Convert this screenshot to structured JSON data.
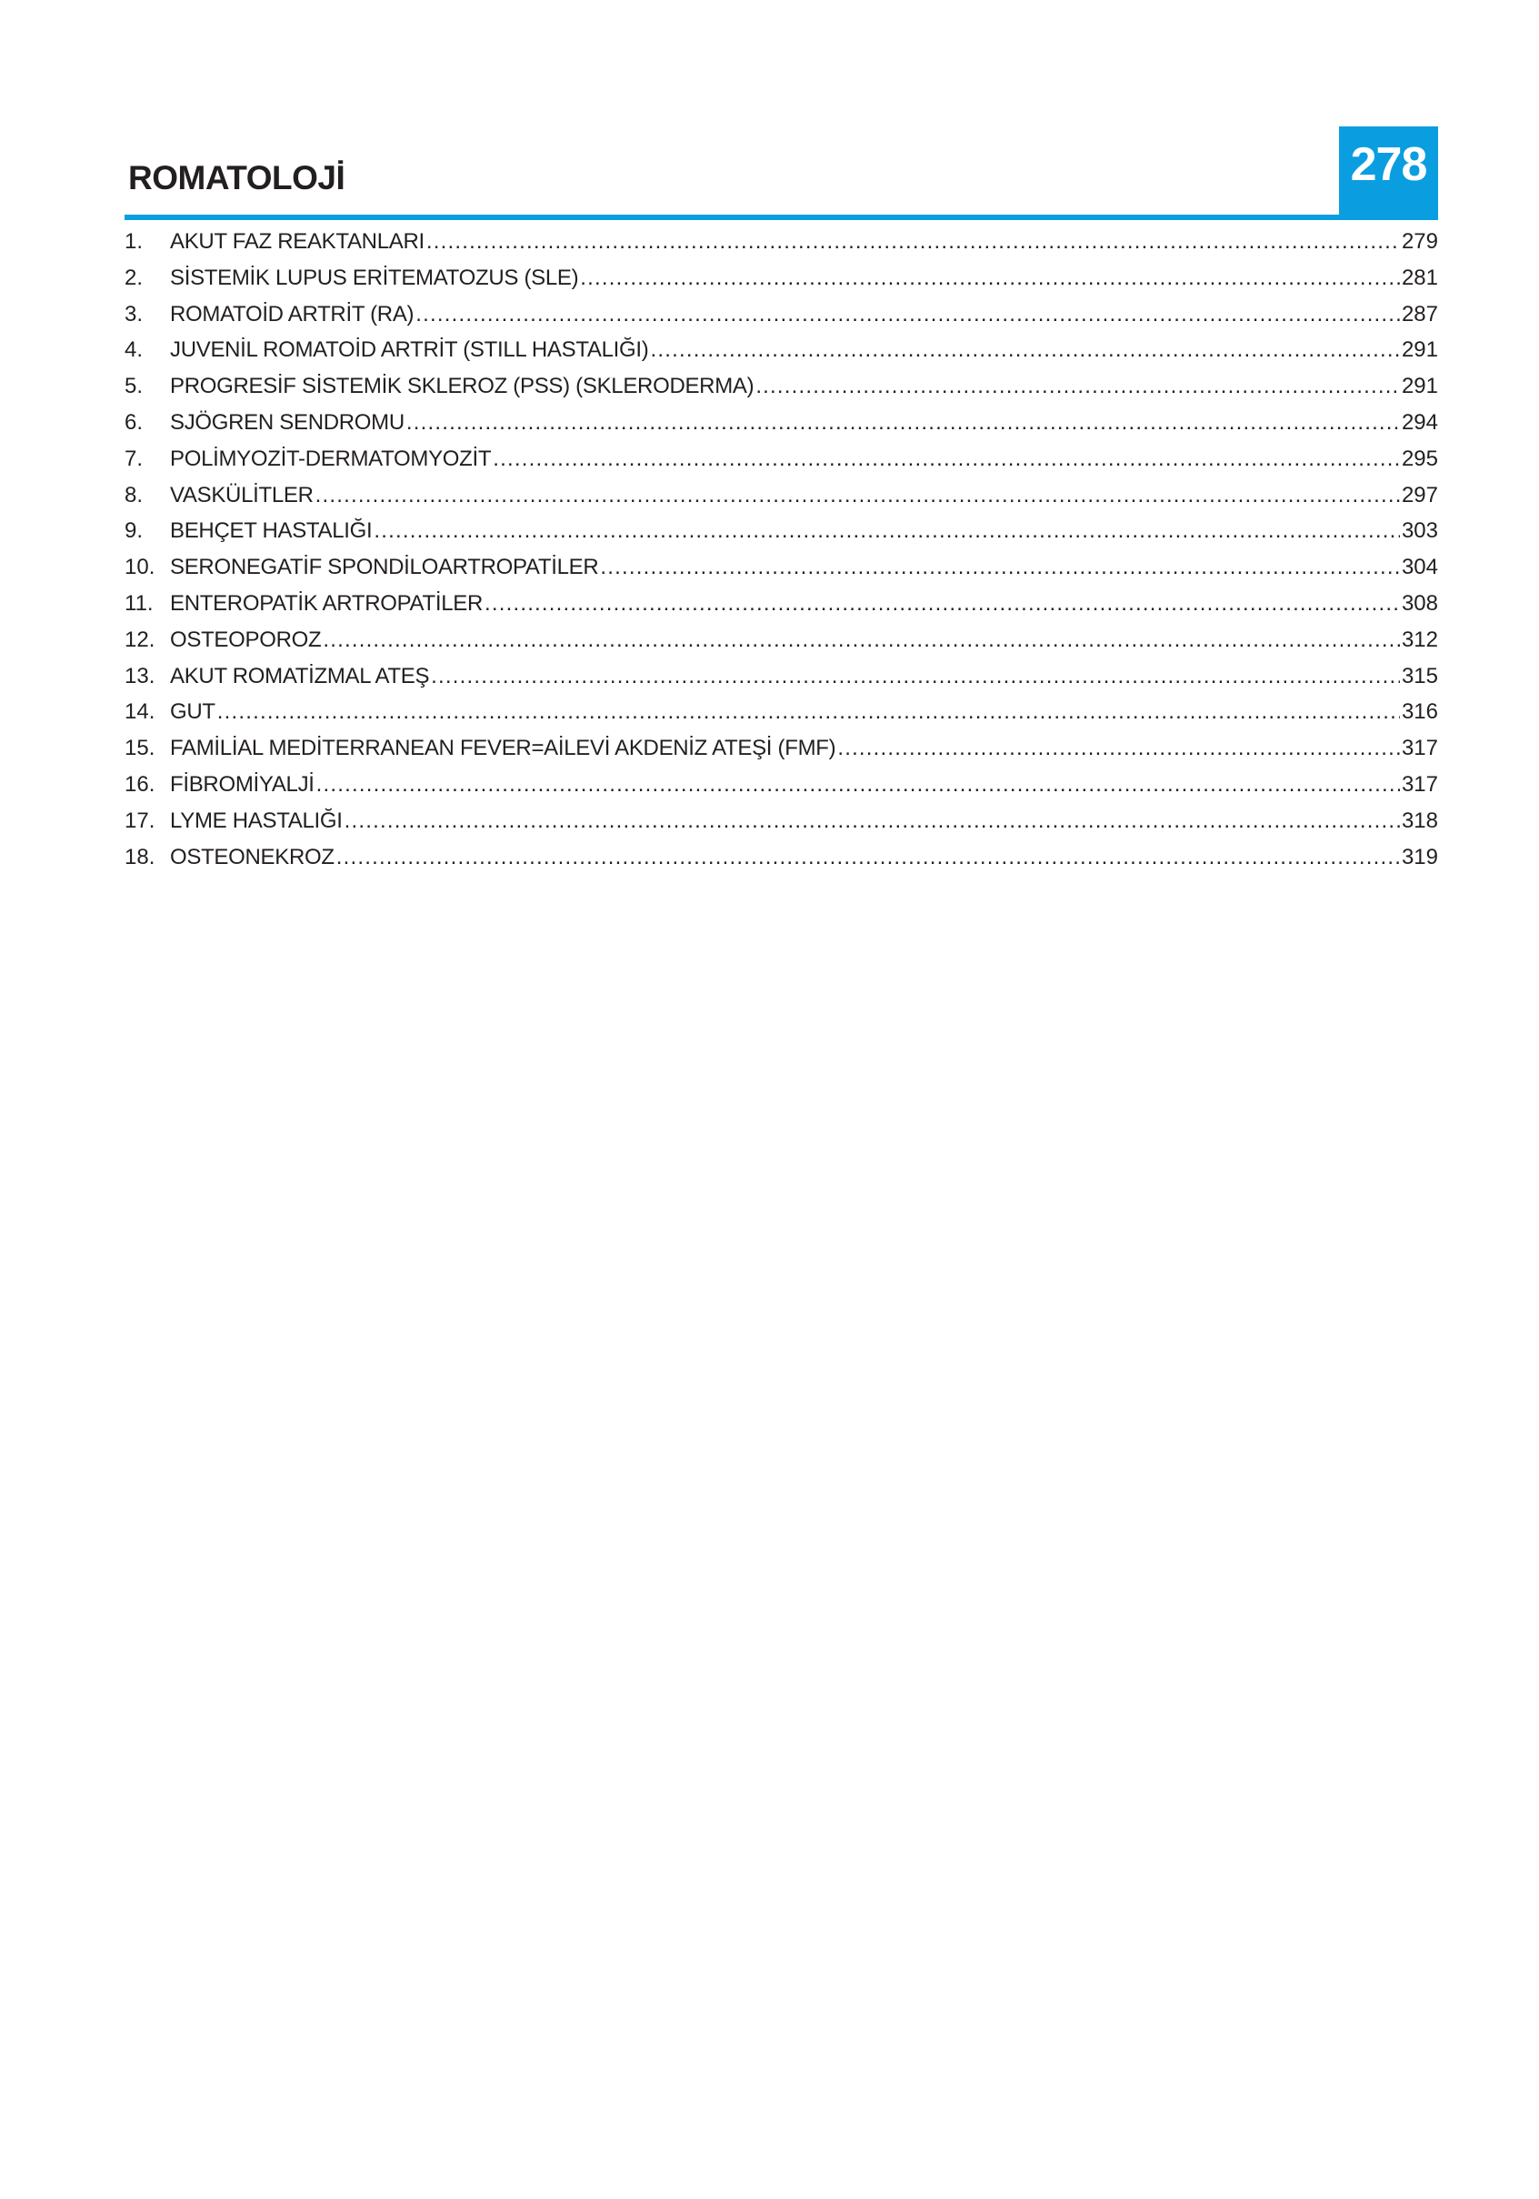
{
  "header": {
    "title": "ROMATOLOJİ",
    "page_number": "278",
    "accent_color": "#0a9ee0"
  },
  "toc": [
    {
      "number": "1.",
      "title": "AKUT FAZ REAKTANLARI",
      "page": "279"
    },
    {
      "number": "2.",
      "title": "SİSTEMİK LUPUS ERİTEMATOZUS (SLE)",
      "page": "281"
    },
    {
      "number": "3.",
      "title": "ROMATOİD ARTRİT (RA)",
      "page": "287"
    },
    {
      "number": "4.",
      "title": "JUVENİL ROMATOİD ARTRİT (STILL HASTALIĞI)",
      "page": "291"
    },
    {
      "number": "5.",
      "title": "PROGRESİF SİSTEMİK SKLEROZ (PSS) (SKLERODERMA)",
      "page": "291"
    },
    {
      "number": "6.",
      "title": "SJÖGREN SENDROMU",
      "page": "294"
    },
    {
      "number": "7.",
      "title": "POLİMYOZİT-DERMATOMYOZİT",
      "page": "295"
    },
    {
      "number": "8.",
      "title": "VASKÜLİTLER",
      "page": "297"
    },
    {
      "number": "9.",
      "title": "BEHÇET HASTALIĞI",
      "page": "303"
    },
    {
      "number": "10.",
      "title": "SERONEGATİF SPONDİLOARTROPATİLER",
      "page": "304"
    },
    {
      "number": "11.",
      "title": "ENTEROPATİK  ARTROPATİLER",
      "page": "308"
    },
    {
      "number": "12.",
      "title": "OSTEOPOROZ",
      "page": "312"
    },
    {
      "number": "13.",
      "title": "AKUT ROMATİZMAL ATEŞ",
      "page": "315"
    },
    {
      "number": "14.",
      "title": "GUT",
      "page": "316"
    },
    {
      "number": "15.",
      "title": "FAMİLİAL MEDİTERRANEAN FEVER=AİLEVİ AKDENİZ ATEŞİ (FMF)",
      "page": "317"
    },
    {
      "number": "16.",
      "title": "FİBROMİYALJİ",
      "page": "317"
    },
    {
      "number": "17.",
      "title": "LYME HASTALIĞI",
      "page": "318"
    },
    {
      "number": "18.",
      "title": "OSTEONEKROZ",
      "page": "319"
    }
  ]
}
